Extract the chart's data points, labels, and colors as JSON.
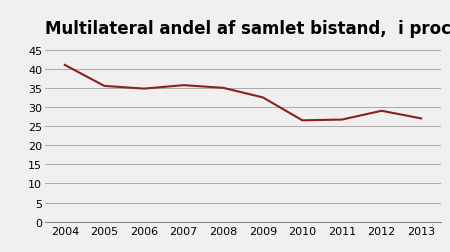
{
  "title": "Multilateral andel af samlet bistand,  i procent",
  "years": [
    2004,
    2005,
    2006,
    2007,
    2008,
    2009,
    2010,
    2011,
    2012,
    2013
  ],
  "values": [
    41.0,
    35.5,
    34.8,
    35.7,
    35.0,
    32.5,
    26.5,
    26.7,
    29.0,
    27.0
  ],
  "line_color": "#8b2020",
  "line_width": 1.5,
  "ylim": [
    0,
    45
  ],
  "yticks": [
    0,
    5,
    10,
    15,
    20,
    25,
    30,
    35,
    40,
    45
  ],
  "background_color": "#f0f0f0",
  "grid_color": "#aaaaaa",
  "title_fontsize": 12,
  "tick_fontsize": 8
}
